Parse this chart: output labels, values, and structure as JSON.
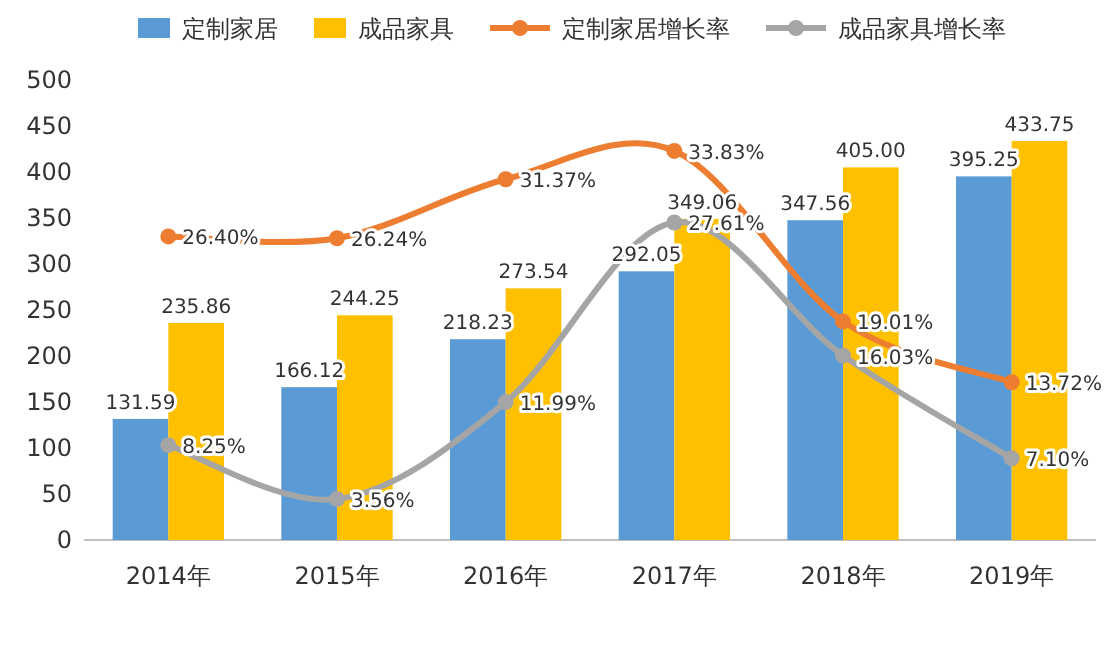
{
  "chart_data": {
    "type": "bar",
    "categories": [
      "2014年",
      "2015年",
      "2016年",
      "2017年",
      "2018年",
      "2019年"
    ],
    "series": [
      {
        "name": "定制家居",
        "color": "#5b9bd5",
        "values": [
          131.59,
          166.12,
          218.23,
          292.05,
          347.56,
          395.25
        ],
        "value_labels": [
          "131.59",
          "166.12",
          "218.23",
          "292.05",
          "347.56",
          "395.25"
        ]
      },
      {
        "name": "成品家具",
        "color": "#ffc000",
        "values": [
          235.86,
          244.25,
          273.54,
          349.06,
          405.0,
          433.75
        ],
        "value_labels": [
          "235.86",
          "244.25",
          "273.54",
          "349.06",
          "405.00",
          "433.75"
        ]
      },
      {
        "name": "定制家居增长率",
        "type": "line",
        "axis": "y2",
        "color": "#ed7d31",
        "values": [
          26.4,
          26.24,
          31.37,
          33.83,
          19.01,
          13.72
        ],
        "value_labels": [
          "26.40%",
          "26.24%",
          "31.37%",
          "33.83%",
          "19.01%",
          "13.72%"
        ]
      },
      {
        "name": "成品家具增长率",
        "type": "line",
        "axis": "y2",
        "color": "#a5a5a5",
        "values": [
          8.25,
          3.56,
          11.99,
          27.61,
          16.03,
          7.1
        ],
        "value_labels": [
          "8.25%",
          "3.56%",
          "11.99%",
          "27.61%",
          "16.03%",
          "7.10%"
        ]
      }
    ],
    "ylim": [
      0,
      500
    ],
    "yticks": [
      0,
      50,
      100,
      150,
      200,
      250,
      300,
      350,
      400,
      450,
      500
    ],
    "legend": "top",
    "marker": "circle",
    "grid": false
  }
}
